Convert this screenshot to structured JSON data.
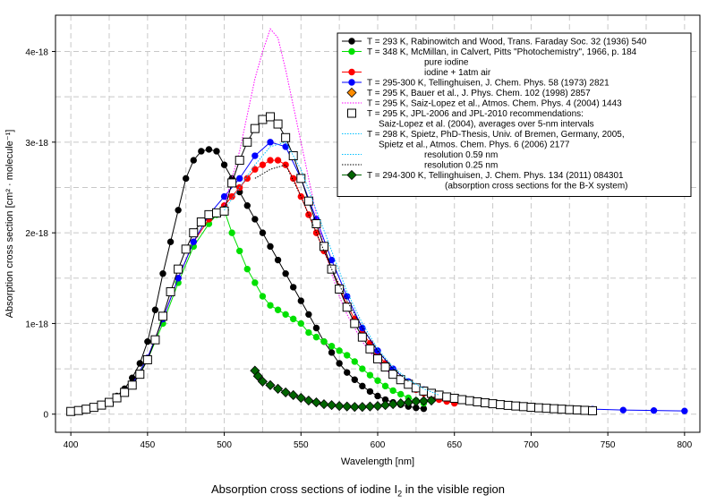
{
  "caption": {
    "text": "Absorption cross sections of iodine I",
    "subscript": "2",
    "suffix": " in the visible region"
  },
  "chart_data": {
    "type": "line",
    "xlabel": "Wavelength [nm]",
    "ylabel": "Absorption cross section [cm² · molecule⁻¹]",
    "xlim": [
      390,
      810
    ],
    "ylim": [
      -2e-19,
      4.4e-18
    ],
    "x_ticks": [
      400,
      450,
      500,
      550,
      600,
      650,
      700,
      750,
      800
    ],
    "y_ticks": [
      0,
      1e-18,
      2e-18,
      3e-18,
      4e-18
    ],
    "y_tick_labels": [
      "0",
      "1e-18",
      "2e-18",
      "3e-18",
      "4e-18"
    ],
    "grid": true,
    "legend_position": "top-right",
    "legend": [
      {
        "label": "T = 293 K, Rabinowitch and Wood, Trans. Faraday Soc. 32 (1936) 540",
        "color": "#000000",
        "marker": "circle",
        "style": "solid"
      },
      {
        "label": "T = 348 K, McMillan, in Calvert, Pitts \"Photochemistry\", 1966, p. 184",
        "color": "#00e000",
        "marker": "circle",
        "style": "solid"
      },
      {
        "label": "pure iodine",
        "color": "#00e000",
        "marker": "none",
        "style": "none"
      },
      {
        "label": "iodine + 1atm air",
        "color": "#ff0000",
        "marker": "circle",
        "style": "solid"
      },
      {
        "label": "T = 295-300 K, Tellinghuisen, J. Chem. Phys. 58 (1973) 2821",
        "color": "#0000ff",
        "marker": "circle",
        "style": "solid"
      },
      {
        "label": "T = 295 K, Bauer et al., J. Phys. Chem. 102 (1998) 2857",
        "color": "#ff8c00",
        "marker": "diamond",
        "style": "none"
      },
      {
        "label": "T = 295 K, Saiz-Lopez et al., Atmos. Chem. Phys. 4 (2004) 1443",
        "color": "#ff00ff",
        "marker": "none",
        "style": "dotted"
      },
      {
        "label": "T = 295 K, JPL-2006 and JPL-2010 recommendations:",
        "color": "#000000",
        "marker": "square",
        "style": "none"
      },
      {
        "label": "Saiz-Lopez et al. (2004), averages over 5-nm intervals",
        "color": "#000000",
        "marker": "none",
        "style": "none"
      },
      {
        "label": "T = 298 K, Spietz, PhD-Thesis, Univ. of Bremen, Germany, 2005,",
        "color": "#00bfff",
        "marker": "none",
        "style": "dotted"
      },
      {
        "label": "Spietz et al., Atmos. Chem. Phys. 6 (2006) 2177",
        "color": "#000000",
        "marker": "none",
        "style": "none"
      },
      {
        "label": "resolution 0.59 nm",
        "color": "#00bfff",
        "marker": "none",
        "style": "dotted"
      },
      {
        "label": "resolution 0.25 nm",
        "color": "#000000",
        "marker": "none",
        "style": "dotted"
      },
      {
        "label": "T = 294-300 K, Tellinghuisen, J. Chem. Phys. 134 (2011) 084301",
        "color": "#006400",
        "marker": "diamond",
        "style": "solid"
      },
      {
        "label": "(absorption cross sections for the B-X system)",
        "color": "#000000",
        "marker": "none",
        "style": "none"
      }
    ],
    "series": [
      {
        "name": "Rabinowitch and Wood 1936",
        "color": "#000000",
        "marker": "circle",
        "line": "solid",
        "x": [
          400,
          405,
          410,
          415,
          420,
          425,
          430,
          435,
          440,
          445,
          450,
          455,
          460,
          465,
          470,
          475,
          480,
          485,
          490,
          495,
          500,
          505,
          510,
          515,
          520,
          525,
          530,
          535,
          540,
          545,
          550,
          555,
          560,
          565,
          570,
          575,
          580,
          585,
          590,
          595,
          600,
          605,
          610,
          615,
          620,
          625,
          630
        ],
        "y": [
          3e-20,
          3.5e-20,
          5e-20,
          7e-20,
          1e-19,
          1.4e-19,
          2e-19,
          2.8e-19,
          4e-19,
          5.6e-19,
          8e-19,
          1.15e-18,
          1.55e-18,
          1.9e-18,
          2.25e-18,
          2.6e-18,
          2.8e-18,
          2.9e-18,
          2.92e-18,
          2.9e-18,
          2.75e-18,
          2.6e-18,
          2.45e-18,
          2.3e-18,
          2.15e-18,
          2e-18,
          1.85e-18,
          1.7e-18,
          1.55e-18,
          1.4e-18,
          1.25e-18,
          1.1e-18,
          9.5e-19,
          8e-19,
          6.8e-19,
          5.6e-19,
          4.6e-19,
          3.8e-19,
          3.1e-19,
          2.5e-19,
          2e-19,
          1.6e-19,
          1.3e-19,
          1.05e-19,
          8.5e-20,
          7e-20,
          6e-20
        ]
      },
      {
        "name": "McMillan 1966 pure iodine",
        "color": "#00e000",
        "marker": "circle",
        "line": "solid",
        "x": [
          400,
          410,
          420,
          430,
          440,
          450,
          460,
          470,
          480,
          490,
          495,
          500,
          505,
          510,
          515,
          520,
          525,
          530,
          535,
          540,
          545,
          550,
          555,
          560,
          565,
          570,
          575,
          580,
          585,
          590,
          595,
          600,
          605,
          610,
          615,
          620,
          625,
          630
        ],
        "y": [
          3e-20,
          5e-20,
          9e-20,
          1.8e-19,
          3.2e-19,
          6e-19,
          1e-18,
          1.45e-18,
          1.85e-18,
          2.1e-18,
          2.2e-18,
          2.25e-18,
          2e-18,
          1.8e-18,
          1.6e-18,
          1.45e-18,
          1.3e-18,
          1.2e-18,
          1.15e-18,
          1.1e-18,
          1.05e-18,
          1e-18,
          9e-19,
          8.5e-19,
          8e-19,
          7.5e-19,
          7e-19,
          6.5e-19,
          5.8e-19,
          5e-19,
          4.3e-19,
          3.7e-19,
          3.1e-19,
          2.6e-19,
          2.2e-19,
          1.8e-19,
          1.5e-19,
          1.2e-19
        ]
      },
      {
        "name": "McMillan 1966 iodine + 1atm air",
        "color": "#ff0000",
        "marker": "circle",
        "line": "solid",
        "x": [
          400,
          410,
          420,
          430,
          440,
          450,
          460,
          470,
          480,
          490,
          500,
          505,
          510,
          515,
          520,
          525,
          530,
          535,
          540,
          545,
          550,
          555,
          560,
          565,
          570,
          575,
          580,
          585,
          590,
          595,
          600,
          605,
          610,
          615,
          620,
          625,
          630,
          635,
          640,
          645,
          650
        ],
        "y": [
          3e-20,
          5e-20,
          9e-20,
          1.8e-19,
          3.3e-19,
          6.2e-19,
          1.05e-18,
          1.5e-18,
          1.9e-18,
          2.15e-18,
          2.3e-18,
          2.4e-18,
          2.5e-18,
          2.6e-18,
          2.7e-18,
          2.75e-18,
          2.8e-18,
          2.8e-18,
          2.75e-18,
          2.6e-18,
          2.4e-18,
          2.2e-18,
          2e-18,
          1.8e-18,
          1.6e-18,
          1.4e-18,
          1.2e-18,
          1.05e-18,
          9e-19,
          7.8e-19,
          6.6e-19,
          5.6e-19,
          4.7e-19,
          3.9e-19,
          3.3e-19,
          2.7e-19,
          2.3e-19,
          1.9e-19,
          1.6e-19,
          1.4e-19,
          1.2e-19
        ]
      },
      {
        "name": "Tellinghuisen 1973",
        "color": "#0000ff",
        "marker": "circle",
        "line": "solid",
        "x": [
          400,
          410,
          420,
          430,
          440,
          450,
          460,
          470,
          480,
          490,
          500,
          510,
          520,
          530,
          540,
          550,
          560,
          570,
          580,
          590,
          600,
          610,
          620,
          630,
          640,
          650,
          660,
          670,
          680,
          690,
          700,
          720,
          740,
          760,
          780,
          800
        ],
        "y": [
          3e-20,
          5e-20,
          9e-20,
          1.8e-19,
          3.3e-19,
          6.2e-19,
          1.05e-18,
          1.5e-18,
          1.9e-18,
          2.2e-18,
          2.4e-18,
          2.6e-18,
          2.85e-18,
          3e-18,
          2.95e-18,
          2.6e-18,
          2.15e-18,
          1.7e-18,
          1.3e-18,
          9.5e-19,
          7e-19,
          5e-19,
          3.6e-19,
          2.7e-19,
          2.1e-19,
          1.7e-19,
          1.4e-19,
          1.2e-19,
          1.05e-19,
          9e-20,
          8e-20,
          6.5e-20,
          5.5e-20,
          4.5e-20,
          4e-20,
          3.5e-20
        ]
      },
      {
        "name": "Bauer et al. 1998",
        "color": "#ff8c00",
        "marker": "diamond",
        "line": "none",
        "x": [
          500
        ],
        "y": [
          2.25e-18
        ]
      },
      {
        "name": "Saiz-Lopez et al. 2004",
        "color": "#ff00ff",
        "marker": "none",
        "line": "dotted",
        "x": [
          500,
          505,
          510,
          515,
          520,
          525,
          530,
          535,
          540,
          545,
          550,
          555,
          560,
          565,
          570,
          575,
          580,
          590,
          600,
          610,
          620,
          630,
          640
        ],
        "y": [
          2.3e-18,
          2.6e-18,
          2.9e-18,
          3.3e-18,
          3.7e-18,
          4e-18,
          4.25e-18,
          4.15e-18,
          3.8e-18,
          3.4e-18,
          3e-18,
          2.6e-18,
          2.2e-18,
          1.85e-18,
          1.55e-18,
          1.3e-18,
          1.1e-18,
          8e-19,
          5.8e-19,
          4.2e-19,
          3.2e-19,
          2.5e-19,
          2e-19
        ]
      },
      {
        "name": "JPL-2006 and JPL-2010 recommendations",
        "color": "#000000",
        "marker": "square",
        "line": "solid",
        "x": [
          400,
          405,
          410,
          415,
          420,
          425,
          430,
          435,
          440,
          445,
          450,
          455,
          460,
          465,
          470,
          475,
          480,
          485,
          490,
          495,
          500,
          505,
          510,
          515,
          520,
          525,
          530,
          535,
          540,
          545,
          550,
          555,
          560,
          565,
          570,
          575,
          580,
          585,
          590,
          595,
          600,
          605,
          610,
          615,
          620,
          625,
          630,
          635,
          640,
          645,
          650,
          655,
          660,
          665,
          670,
          675,
          680,
          685,
          690,
          695,
          700,
          705,
          710,
          715,
          720,
          725,
          730,
          735,
          740
        ],
        "y": [
          3e-20,
          4e-20,
          5.5e-20,
          7.5e-20,
          1e-19,
          1.3e-19,
          1.8e-19,
          2.4e-19,
          3.2e-19,
          4.4e-19,
          6e-19,
          8.2e-19,
          1.08e-18,
          1.35e-18,
          1.6e-18,
          1.82e-18,
          2e-18,
          2.12e-18,
          2.2e-18,
          2.22e-18,
          2.24e-18,
          2.55e-18,
          2.8e-18,
          3e-18,
          3.15e-18,
          3.25e-18,
          3.28e-18,
          3.2e-18,
          3.05e-18,
          2.85e-18,
          2.6e-18,
          2.35e-18,
          2.1e-18,
          1.85e-18,
          1.6e-18,
          1.38e-18,
          1.18e-18,
          1e-18,
          8.5e-19,
          7.2e-19,
          6.1e-19,
          5.2e-19,
          4.4e-19,
          3.8e-19,
          3.3e-19,
          2.9e-19,
          2.55e-19,
          2.3e-19,
          2.1e-19,
          1.9e-19,
          1.75e-19,
          1.6e-19,
          1.48e-19,
          1.36e-19,
          1.25e-19,
          1.15e-19,
          1.05e-19,
          9.7e-20,
          9e-20,
          8.3e-20,
          7.6e-20,
          7e-20,
          6.5e-20,
          6e-20,
          5.5e-20,
          5e-20,
          4.6e-20,
          4.2e-20,
          3.8e-20
        ]
      },
      {
        "name": "Spietz 2005 resolution 0.59 nm",
        "color": "#00bfff",
        "marker": "none",
        "line": "dotted",
        "x": [
          500,
          510,
          520,
          530,
          540,
          550,
          560,
          570,
          580,
          590,
          600,
          610,
          620,
          630,
          640
        ],
        "y": [
          2.25e-18,
          2.5e-18,
          2.75e-18,
          2.95e-18,
          3e-18,
          2.7e-18,
          2.25e-18,
          1.8e-18,
          1.35e-18,
          1e-18,
          7.2e-19,
          5.2e-19,
          3.8e-19,
          2.8e-19,
          2.1e-19
        ]
      },
      {
        "name": "Spietz 2005 resolution 0.25 nm",
        "color": "#000000",
        "marker": "none",
        "line": "dotted",
        "x": [
          520,
          530,
          540,
          550,
          560,
          570,
          580,
          590,
          600,
          610,
          620
        ],
        "y": [
          2.6e-18,
          2.7e-18,
          2.75e-18,
          2.4e-18,
          2e-18,
          1.6e-18,
          1.25e-18,
          9.5e-19,
          7e-19,
          5e-19,
          3.6e-19
        ]
      },
      {
        "name": "Tellinghuisen 2011",
        "color": "#006400",
        "marker": "diamond",
        "line": "solid",
        "x": [
          520,
          522,
          525,
          530,
          535,
          540,
          545,
          550,
          555,
          560,
          565,
          570,
          575,
          580,
          585,
          590,
          595,
          600,
          605,
          610,
          615,
          620,
          625,
          630,
          635
        ],
        "y": [
          4.8e-19,
          4.2e-19,
          3.6e-19,
          3.2e-19,
          2.8e-19,
          2.4e-19,
          2.1e-19,
          1.8e-19,
          1.5e-19,
          1.3e-19,
          1.1e-19,
          1e-19,
          9e-20,
          8.5e-20,
          8e-20,
          8e-20,
          8.5e-20,
          9e-20,
          1e-19,
          1.1e-19,
          1.2e-19,
          1.3e-19,
          1.4e-19,
          1.45e-19,
          1.5e-19
        ]
      }
    ]
  }
}
